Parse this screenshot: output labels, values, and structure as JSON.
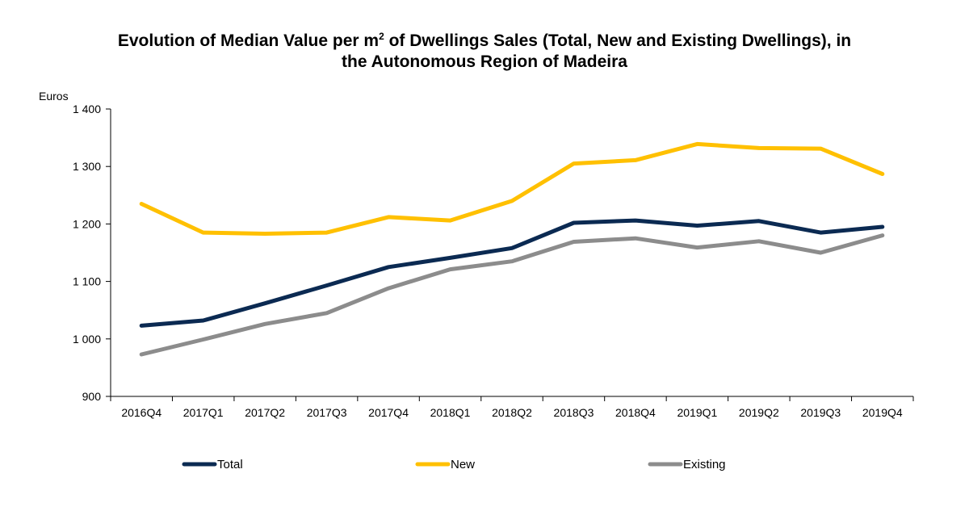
{
  "chart_data": {
    "type": "line",
    "title_part1": "Evolution of Median Value per m",
    "title_sup": "2",
    "title_part2": " of Dwellings Sales (Total, New and Existing Dwellings), in",
    "title_line2": "the Autonomous  Region of Madeira",
    "ylabel": "Euros",
    "xlabel": "",
    "ylim": [
      900,
      1400
    ],
    "yticks": [
      900,
      1000,
      1100,
      1200,
      1300,
      1400
    ],
    "ytick_labels": [
      "900",
      "1 000",
      "1 100",
      "1 200",
      "1 300",
      "1 400"
    ],
    "categories": [
      "2016Q4",
      "2017Q1",
      "2017Q2",
      "2017Q3",
      "2017Q4",
      "2018Q1",
      "2018Q2",
      "2018Q3",
      "2018Q4",
      "2019Q1",
      "2019Q2",
      "2019Q3",
      "2019Q4"
    ],
    "grid": false,
    "legend_position": "bottom",
    "series": [
      {
        "name": "Total",
        "color": "#0b2a52",
        "values": [
          1023,
          1032,
          1062,
          1093,
          1125,
          1141,
          1158,
          1202,
          1206,
          1197,
          1205,
          1185,
          1195
        ]
      },
      {
        "name": "New",
        "color": "#ffc000",
        "values": [
          1235,
          1185,
          1183,
          1185,
          1212,
          1206,
          1240,
          1305,
          1311,
          1339,
          1332,
          1331,
          1287
        ]
      },
      {
        "name": "Existing",
        "color": "#8c8c8c",
        "values": [
          973,
          999,
          1026,
          1045,
          1088,
          1121,
          1135,
          1169,
          1175,
          1159,
          1170,
          1150,
          1180
        ]
      }
    ]
  }
}
